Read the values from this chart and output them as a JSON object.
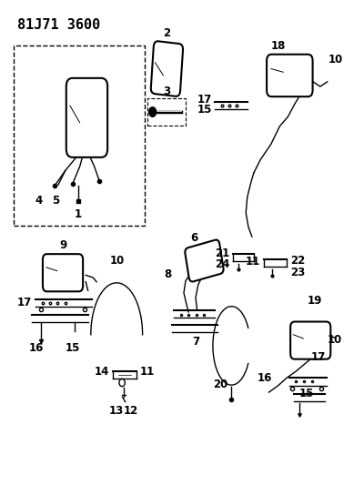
{
  "title": "81J71 3600",
  "bg_color": "#ffffff",
  "line_color": "#000000",
  "title_fontsize": 11,
  "label_fontsize": 8.5,
  "fig_width": 4.0,
  "fig_height": 5.33,
  "dpi": 100
}
